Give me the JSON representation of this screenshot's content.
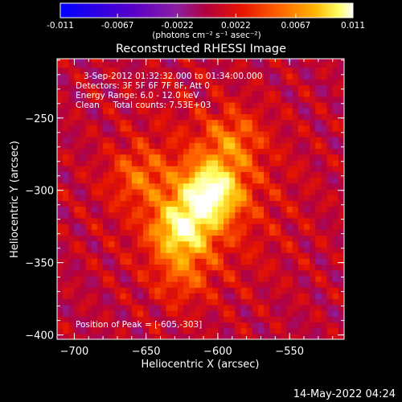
{
  "colorbar": {
    "ticks": [
      "-0.011",
      "-0.0067",
      "-0.0022",
      "0.0022",
      "0.0067",
      "0.011"
    ],
    "tick_values": [
      -0.011,
      -0.0067,
      -0.0022,
      0.0022,
      0.0067,
      0.011
    ],
    "range": [
      -0.011,
      0.011
    ],
    "unit_label": "(photons cm⁻² s⁻¹ asec⁻²)"
  },
  "title": "Reconstructed RHESSI Image",
  "annotations": {
    "time_range": "3-Sep-2012 01:32:32.000 to 01:34:00.000",
    "detectors": "Detectors: 3F 5F 6F 7F 8F, Att 0",
    "energy": "Energy Range: 6.0 - 12.0 keV",
    "clean": "Clean     Total counts: 7.53E+03",
    "peak": "Position of Peak = [-605,-303]"
  },
  "footer_date": "14-May-2022 04:24",
  "chart_data": {
    "type": "heatmap",
    "title": "Reconstructed RHESSI Image",
    "xlabel": "Heliocentric X (arcsec)",
    "ylabel": "Heliocentric Y (arcsec)",
    "xlim": [
      -712,
      -512
    ],
    "ylim": [
      -403,
      -209
    ],
    "xticks": [
      -700,
      -650,
      -600,
      -550
    ],
    "xtick_labels": [
      "−700",
      "−650",
      "−600",
      "−550"
    ],
    "yticks": [
      -250,
      -300,
      -350,
      -400
    ],
    "ytick_labels": [
      "−250",
      "−300",
      "−350",
      "−400"
    ],
    "peak": [
      -605,
      -303
    ],
    "sources": [
      {
        "x": -605,
        "y": -301,
        "peak": 0.011
      },
      {
        "x": -625,
        "y": -327,
        "peak": 0.009
      },
      {
        "x": -590,
        "y": -265,
        "peak": 0.004
      },
      {
        "x": -655,
        "y": -290,
        "peak": 0.0035
      },
      {
        "x": -625,
        "y": -360,
        "peak": 0.003
      }
    ],
    "background_level": -0.0025,
    "colormap": [
      "#0000ff",
      "#5a00c8",
      "#8c1ea0",
      "#b4003c",
      "#e61400",
      "#ff6400",
      "#ffb400",
      "#ffff64",
      "#ffffff"
    ]
  }
}
